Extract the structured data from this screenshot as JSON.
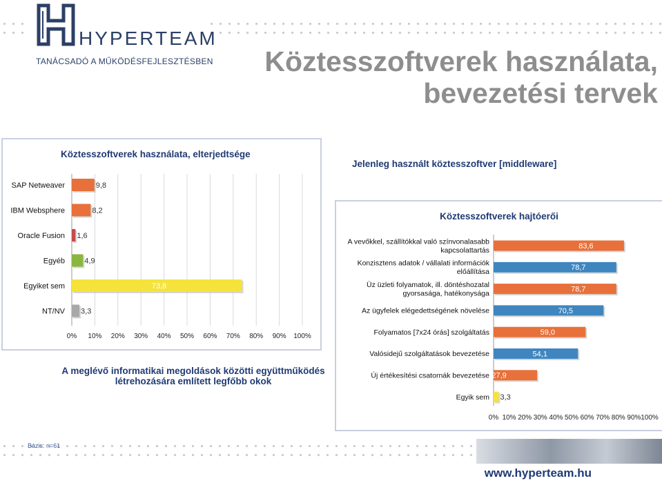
{
  "header": {
    "logo_name": "HYPERTEAM",
    "logo_tagline": "TANÁCSADÓ A MŰKÖDÉSFEJLESZTÉSBEN",
    "title_line1": "Köztesszoftverek használata,",
    "title_line2": "bevezetési tervek"
  },
  "captions": {
    "right": "Jelenleg használt köztesszoftver [middleware]",
    "left_line1": "A meglévő informatikai megoldások közötti együttműködés",
    "left_line2": "létrehozására említett legfőbb okok"
  },
  "footer": {
    "base": "Bázis: n=61",
    "url": "www.hyperteam.hu"
  },
  "colors": {
    "logo_blue": "#2b3f66",
    "caption_blue": "#1f3a73",
    "title_gray": "#8e8e8e",
    "orange": "#e8703a",
    "blue": "#3f86c0",
    "red": "#c64a4e",
    "green": "#8ab640",
    "yellow": "#f5e33c",
    "gray": "#a8a8a8"
  },
  "chart_data": [
    {
      "type": "bar",
      "orientation": "horizontal",
      "title": "Köztesszoftverek használata, elterjedtsége",
      "categories": [
        "SAP Netweaver",
        "IBM Websphere",
        "Oracle Fusion",
        "Egyéb",
        "Egyiket sem",
        "NT/NV"
      ],
      "values": [
        9.8,
        8.2,
        1.6,
        4.9,
        73.8,
        3.3
      ],
      "value_labels": [
        "9,8",
        "8,2",
        "1,6",
        "4,9",
        "73,8",
        "3,3"
      ],
      "bar_colors": [
        "#e8703a",
        "#e8703a",
        "#c64a4e",
        "#8ab640",
        "#f5e33c",
        "#a8a8a8"
      ],
      "xlim": [
        0,
        100
      ],
      "x_ticks": [
        "0%",
        "10%",
        "20%",
        "30%",
        "40%",
        "50%",
        "60%",
        "70%",
        "80%",
        "90%",
        "100%"
      ],
      "grid": true
    },
    {
      "type": "bar",
      "orientation": "horizontal",
      "title": "Köztesszoftverek hajtóerői",
      "categories": [
        [
          "A vevőkkel, szállítókkal való színvonalasabb",
          "kapcsolattartás"
        ],
        [
          "Konzisztens adatok / vállalati információk",
          "előállítása"
        ],
        [
          "Üz üzleti folyamatok, ill. döntéshozatal",
          "gyorsasága, hatékonysága"
        ],
        [
          "Az ügyfelek elégedettségének növelése"
        ],
        [
          "Folyamatos [7x24 órás] szolgáltatás"
        ],
        [
          "Valósidejű szolgáltatások bevezetése"
        ],
        [
          "Új értékesítési csatornák bevezetése"
        ],
        [
          "Egyik sem"
        ]
      ],
      "values": [
        83.6,
        78.7,
        78.7,
        70.5,
        59.0,
        54.1,
        27.9,
        3.3
      ],
      "value_labels": [
        "83,6",
        "78,7",
        "78,7",
        "70,5",
        "59,0",
        "54,1",
        "27,9",
        "3,3"
      ],
      "bar_colors": [
        "#e8703a",
        "#3f86c0",
        "#e8703a",
        "#3f86c0",
        "#e8703a",
        "#3f86c0",
        "#e8703a",
        "#f5e33c"
      ],
      "xlim": [
        0,
        100
      ],
      "x_ticks": [
        "0%",
        "10%",
        "20%",
        "30%",
        "40%",
        "50%",
        "60%",
        "70%",
        "80%",
        "90%",
        "100%"
      ],
      "grid": false
    }
  ]
}
